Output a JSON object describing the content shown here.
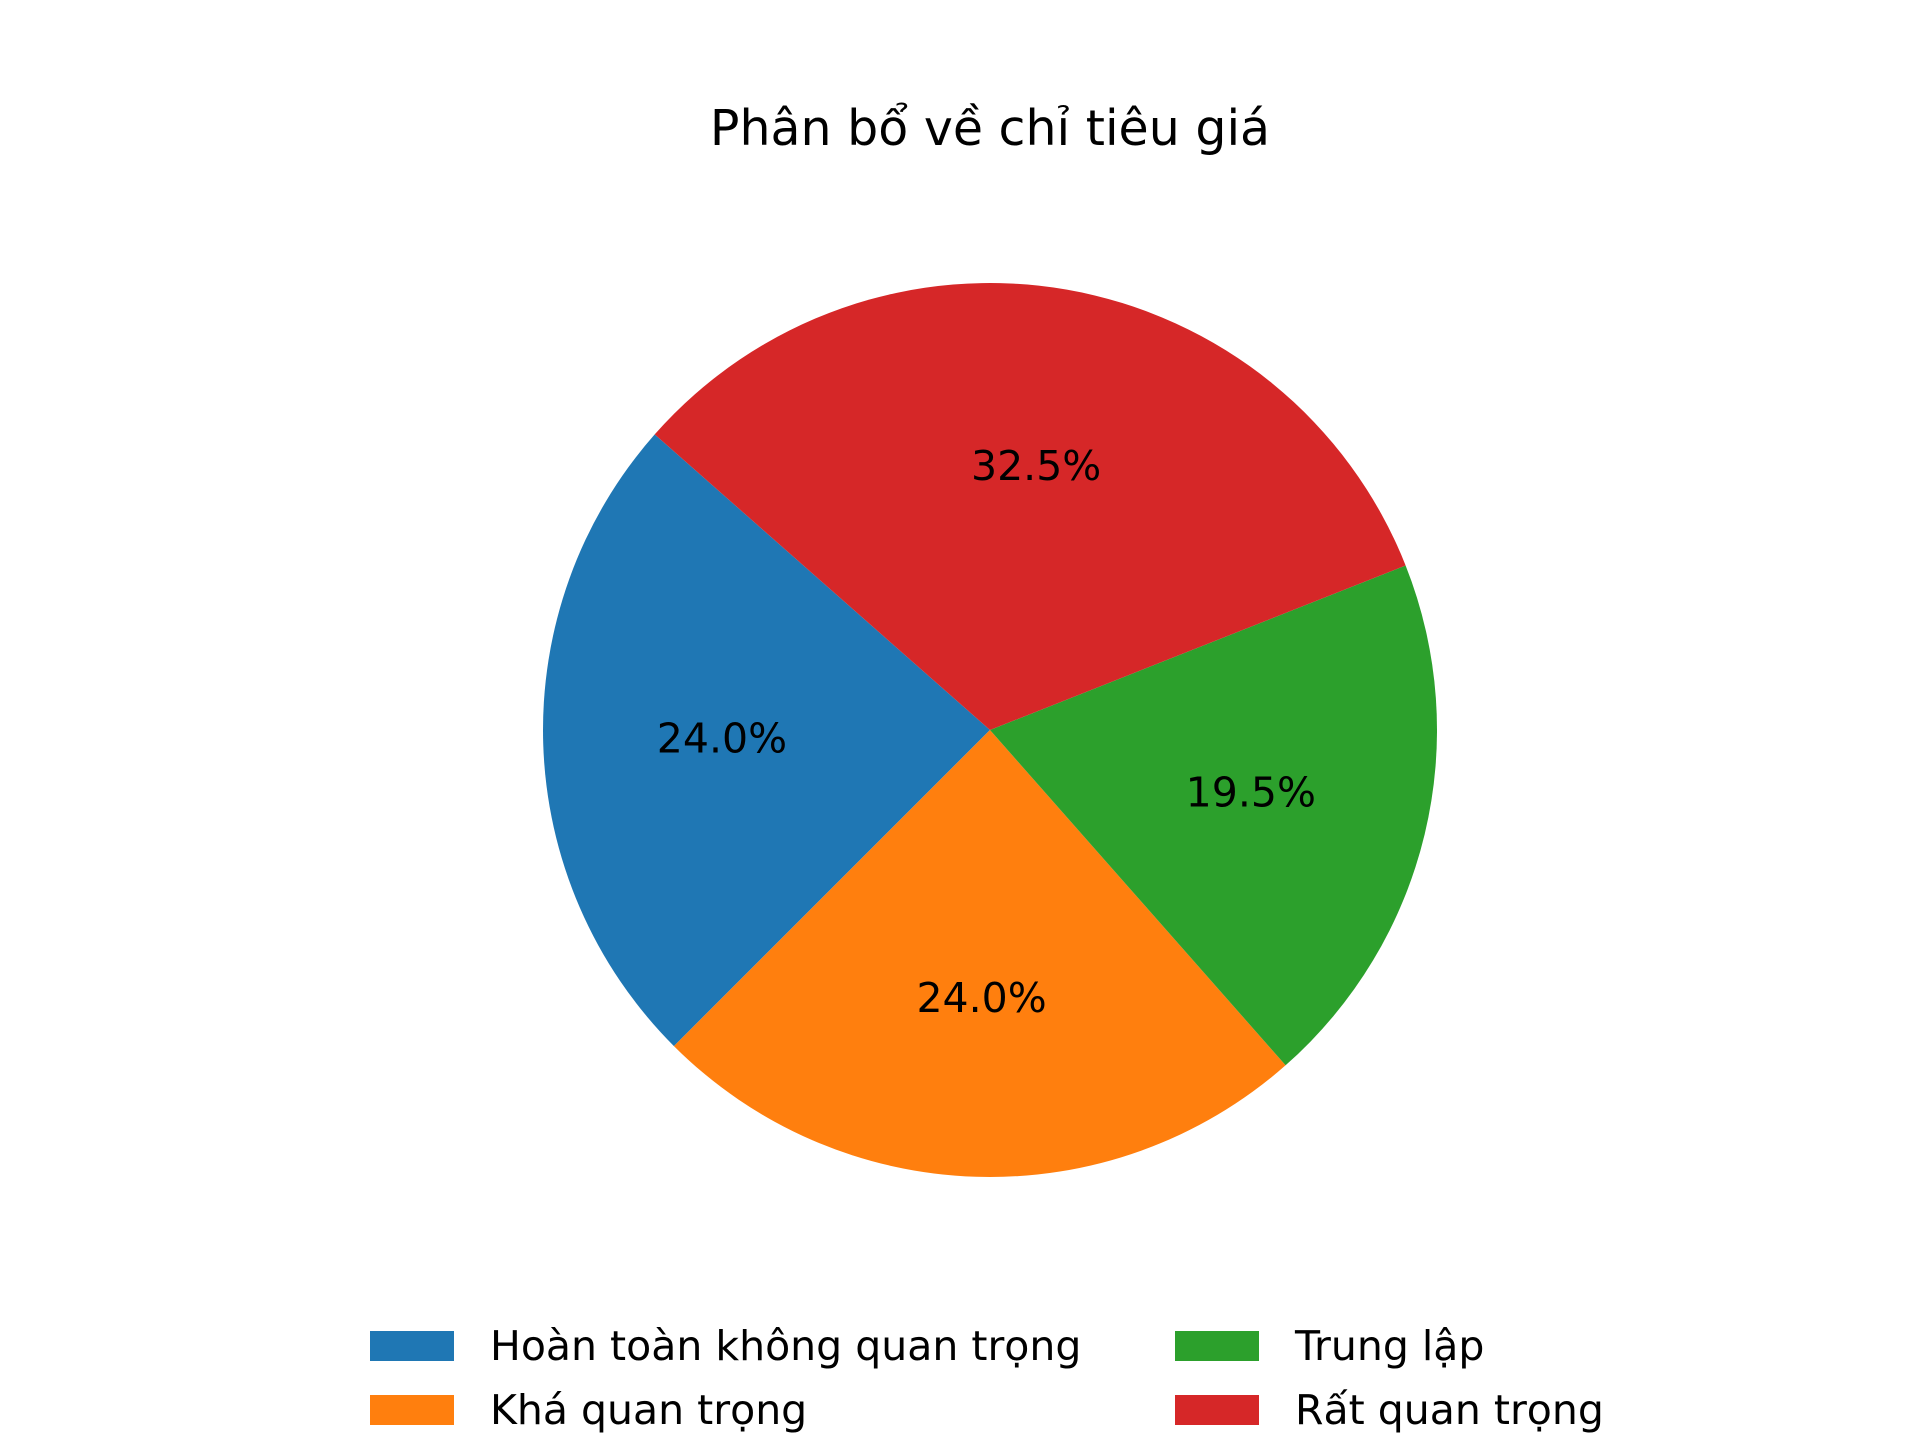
{
  "chart_data": {
    "type": "pie",
    "title": "Phân bổ về chỉ tiêu giá",
    "slices": [
      {
        "label": "Hoàn toàn không quan trọng",
        "value": 24.0,
        "pct_label": "24.0%",
        "color": "#1f77b4"
      },
      {
        "label": "Khá quan trọng",
        "value": 24.0,
        "pct_label": "24.0%",
        "color": "#ff7f0e"
      },
      {
        "label": "Trung lập",
        "value": 19.5,
        "pct_label": "19.5%",
        "color": "#2ca02c"
      },
      {
        "label": "Rất quan trọng",
        "value": 32.5,
        "pct_label": "32.5%",
        "color": "#d62728"
      }
    ],
    "legend_position": "bottom"
  }
}
